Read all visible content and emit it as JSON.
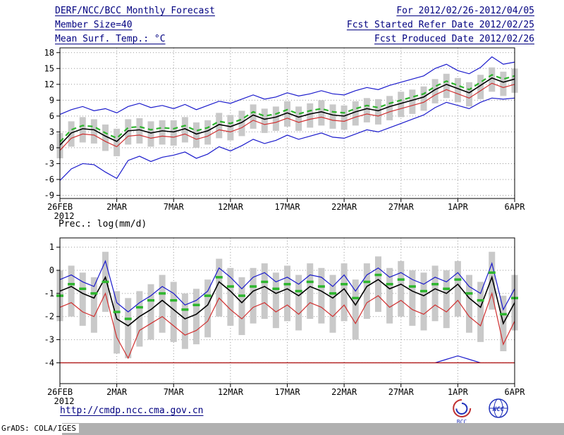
{
  "header": {
    "left": [
      "DERF/NCC/BCC Monthly Forecast",
      "Member Size=40",
      "Mean Surf. Temp.: °C"
    ],
    "right": [
      "For 2012/02/26-2012/04/05",
      "Fcst Started Refer Date 2012/02/25",
      "Fcst Produced Date 2012/02/26"
    ]
  },
  "footer": {
    "url": "http://cmdp.ncc.cma.gov.cn",
    "credit": "GrADS: COLA/IGES"
  },
  "logos": [
    {
      "label": "BCC"
    },
    {
      "label": "NCC"
    }
  ],
  "colors": {
    "navy": "#000080",
    "grid": "#999999",
    "bar": "#c9c9c9",
    "blue": "#1a1acc",
    "red": "#d03030",
    "green": "#2db52d",
    "floor_red": "#b01818",
    "strip": "#b0b0b0"
  },
  "chart_data": [
    {
      "type": "line",
      "title": "Mean Surf. Temp.: °C",
      "ylabel": "",
      "xlabel": "",
      "ylim": [
        -9.6,
        18.9
      ],
      "yticks": [
        -9,
        -6,
        -3,
        0,
        3,
        6,
        9,
        12,
        15,
        18
      ],
      "x_days": 40,
      "x_tick_days": [
        0,
        5,
        10,
        15,
        20,
        25,
        30,
        35,
        40
      ],
      "x_tick_labels": [
        "26FEB",
        "2MAR",
        "7MAR",
        "12MAR",
        "17MAR",
        "22MAR",
        "27MAR",
        "1APR",
        "6APR"
      ],
      "x_sub_label": "2012",
      "grid": "dotted",
      "legend": "none",
      "bars": {
        "name": "ensemble-spread-bars",
        "color": "#c9c9c9",
        "top": [
          2.8,
          5.0,
          5.8,
          5.4,
          4.4,
          3.6,
          5.4,
          5.6,
          5.0,
          5.2,
          5.2,
          5.8,
          4.8,
          5.2,
          6.6,
          6.2,
          7.0,
          8.2,
          7.4,
          7.8,
          8.8,
          7.8,
          8.4,
          9.0,
          8.2,
          8.0,
          8.8,
          9.4,
          9.2,
          9.8,
          10.6,
          11.0,
          11.6,
          13.0,
          14.0,
          13.2,
          12.4,
          13.8,
          15.2,
          14.4,
          15.0
        ],
        "bottom": [
          -2.0,
          0.2,
          1.0,
          0.8,
          -0.6,
          -1.6,
          0.6,
          0.8,
          0.2,
          0.6,
          0.4,
          1.0,
          0.0,
          0.6,
          1.8,
          1.4,
          2.2,
          3.6,
          2.8,
          3.2,
          4.0,
          3.2,
          3.8,
          4.2,
          3.6,
          3.4,
          4.2,
          4.8,
          4.4,
          5.2,
          5.8,
          6.4,
          7.0,
          8.4,
          9.4,
          8.6,
          7.8,
          9.2,
          10.6,
          9.8,
          10.4
        ]
      },
      "series": [
        {
          "name": "upper-blue-line",
          "color": "#1a1acc",
          "width": 1.2,
          "dash": "",
          "values": [
            6.3,
            7.2,
            7.8,
            7.0,
            7.4,
            6.6,
            7.8,
            8.4,
            7.6,
            8.0,
            7.4,
            8.2,
            7.2,
            8.0,
            8.8,
            8.4,
            9.2,
            10.0,
            9.2,
            9.6,
            10.4,
            9.8,
            10.2,
            10.8,
            10.2,
            10.0,
            10.8,
            11.4,
            11.0,
            11.8,
            12.4,
            13.0,
            13.6,
            15.0,
            15.8,
            14.6,
            14.0,
            15.2,
            17.2,
            15.8,
            16.2
          ]
        },
        {
          "name": "lower-blue-line",
          "color": "#1a1acc",
          "width": 1.2,
          "dash": "",
          "values": [
            -6.2,
            -4.0,
            -3.0,
            -3.2,
            -4.6,
            -5.8,
            -2.4,
            -1.6,
            -2.6,
            -1.8,
            -1.4,
            -0.8,
            -2.0,
            -1.2,
            0.2,
            -0.6,
            0.4,
            1.6,
            0.8,
            1.4,
            2.4,
            1.6,
            2.2,
            2.8,
            2.0,
            1.8,
            2.6,
            3.4,
            3.0,
            3.8,
            4.6,
            5.4,
            6.2,
            7.6,
            8.6,
            8.0,
            7.4,
            8.6,
            9.4,
            9.2,
            9.4
          ]
        },
        {
          "name": "red-line",
          "color": "#d03030",
          "width": 1.2,
          "dash": "",
          "values": [
            -0.5,
            1.8,
            2.6,
            2.4,
            1.2,
            0.2,
            2.2,
            2.4,
            1.8,
            2.2,
            2.0,
            2.6,
            1.6,
            2.2,
            3.4,
            3.0,
            3.8,
            5.2,
            4.4,
            4.8,
            5.6,
            4.8,
            5.4,
            5.8,
            5.2,
            5.0,
            5.8,
            6.4,
            6.0,
            6.8,
            7.4,
            8.0,
            8.6,
            10.0,
            11.0,
            10.2,
            9.4,
            10.8,
            12.2,
            11.4,
            12.0
          ]
        },
        {
          "name": "black-mean-line",
          "color": "#000000",
          "width": 1.6,
          "dash": "",
          "values": [
            0.5,
            2.8,
            3.6,
            3.4,
            2.2,
            1.2,
            3.2,
            3.4,
            2.8,
            3.2,
            3.0,
            3.6,
            2.6,
            3.2,
            4.4,
            4.0,
            4.8,
            6.2,
            5.4,
            5.8,
            6.6,
            5.8,
            6.4,
            6.8,
            6.2,
            6.0,
            6.8,
            7.4,
            7.0,
            7.8,
            8.4,
            9.0,
            9.6,
            11.0,
            12.0,
            11.2,
            10.4,
            11.8,
            13.2,
            12.4,
            13.0
          ]
        },
        {
          "name": "green-dashed-line",
          "color": "#2db52d",
          "width": 2.2,
          "dash": "7 5",
          "values": [
            1.1,
            3.4,
            4.2,
            4.0,
            2.8,
            1.8,
            3.8,
            4.0,
            3.4,
            3.8,
            3.6,
            4.2,
            3.2,
            3.8,
            5.0,
            4.6,
            5.4,
            6.8,
            6.0,
            6.4,
            7.2,
            6.4,
            7.0,
            7.4,
            6.8,
            6.6,
            7.4,
            8.0,
            7.6,
            8.4,
            9.0,
            9.6,
            10.2,
            11.6,
            12.6,
            11.8,
            11.0,
            12.4,
            13.8,
            13.0,
            13.6
          ]
        }
      ]
    },
    {
      "type": "line",
      "title": "Prec.: log(mm/d)",
      "ylabel": "",
      "xlabel": "",
      "ylim": [
        -4.9,
        1.4
      ],
      "yticks": [
        -4,
        -3,
        -2,
        -1,
        0,
        1
      ],
      "x_days": 40,
      "x_tick_days": [
        0,
        5,
        10,
        15,
        20,
        25,
        30,
        35,
        40
      ],
      "x_tick_labels": [
        "26FEB",
        "2MAR",
        "7MAR",
        "12MAR",
        "17MAR",
        "22MAR",
        "27MAR",
        "1APR",
        "6APR"
      ],
      "x_sub_label": "2012",
      "grid": "dotted",
      "legend": "none",
      "bars": {
        "name": "ensemble-spread-bars",
        "color": "#c9c9c9",
        "top": [
          0.0,
          0.2,
          -0.1,
          -0.3,
          0.8,
          -0.9,
          -1.2,
          -0.9,
          -0.6,
          -0.2,
          -0.5,
          -1.0,
          -0.8,
          -0.4,
          0.5,
          0.1,
          -0.3,
          0.1,
          0.3,
          -0.1,
          0.2,
          -0.2,
          0.3,
          0.1,
          -0.2,
          0.3,
          -0.4,
          0.3,
          0.6,
          0.1,
          0.4,
          0.0,
          -0.1,
          0.2,
          0.0,
          0.4,
          -0.2,
          -0.5,
          0.8,
          -1.1,
          -0.2
        ],
        "bottom": [
          -2.2,
          -2.0,
          -2.4,
          -2.7,
          -1.8,
          -3.6,
          -3.8,
          -3.3,
          -3.0,
          -2.7,
          -3.1,
          -3.4,
          -3.2,
          -2.9,
          -2.0,
          -2.4,
          -2.8,
          -2.3,
          -2.1,
          -2.5,
          -2.2,
          -2.6,
          -2.1,
          -2.3,
          -2.7,
          -2.2,
          -3.0,
          -2.1,
          -1.8,
          -2.3,
          -2.0,
          -2.4,
          -2.6,
          -2.2,
          -2.5,
          -2.0,
          -2.7,
          -3.1,
          -1.7,
          -3.5,
          -2.6
        ]
      },
      "series": [
        {
          "name": "red-line",
          "color": "#d03030",
          "width": 1.2,
          "dash": "",
          "values": [
            -1.6,
            -1.4,
            -1.8,
            -2.0,
            -1.0,
            -2.9,
            -3.8,
            -2.6,
            -2.3,
            -2.0,
            -2.4,
            -2.8,
            -2.6,
            -2.2,
            -1.2,
            -1.7,
            -2.1,
            -1.6,
            -1.4,
            -1.8,
            -1.5,
            -1.9,
            -1.4,
            -1.6,
            -2.0,
            -1.5,
            -2.3,
            -1.4,
            -1.1,
            -1.6,
            -1.3,
            -1.7,
            -1.9,
            -1.5,
            -1.8,
            -1.3,
            -2.0,
            -2.4,
            -1.0,
            -3.2,
            -2.2
          ]
        },
        {
          "name": "black-mean-line",
          "color": "#000000",
          "width": 1.6,
          "dash": "",
          "values": [
            -0.9,
            -0.7,
            -1.0,
            -1.2,
            -0.3,
            -2.1,
            -2.4,
            -2.0,
            -1.7,
            -1.3,
            -1.7,
            -2.1,
            -1.9,
            -1.5,
            -0.5,
            -0.9,
            -1.4,
            -0.9,
            -0.7,
            -1.0,
            -0.8,
            -1.1,
            -0.7,
            -0.9,
            -1.2,
            -0.8,
            -1.5,
            -0.7,
            -0.4,
            -0.8,
            -0.6,
            -0.9,
            -1.1,
            -0.8,
            -1.0,
            -0.6,
            -1.2,
            -1.6,
            -0.3,
            -2.3,
            -1.4
          ]
        },
        {
          "name": "upper-blue-line",
          "color": "#1a1acc",
          "width": 1.2,
          "dash": "",
          "values": [
            -0.4,
            -0.2,
            -0.5,
            -0.7,
            0.4,
            -1.4,
            -1.8,
            -1.4,
            -1.1,
            -0.7,
            -1.0,
            -1.5,
            -1.3,
            -0.9,
            0.1,
            -0.3,
            -0.8,
            -0.3,
            -0.1,
            -0.5,
            -0.3,
            -0.6,
            -0.2,
            -0.3,
            -0.7,
            -0.2,
            -0.9,
            -0.2,
            0.1,
            -0.3,
            -0.1,
            -0.4,
            -0.6,
            -0.3,
            -0.5,
            -0.1,
            -0.7,
            -1.0,
            0.3,
            -1.7,
            -0.8
          ]
        }
      ],
      "markers": {
        "name": "green-dash-markers",
        "color": "#2db52d",
        "values": [
          -1.1,
          -0.6,
          -0.8,
          -1.0,
          -0.5,
          -1.8,
          -2.1,
          -1.6,
          -1.3,
          -1.0,
          -1.3,
          -1.7,
          -1.5,
          -1.1,
          -0.3,
          -0.7,
          -1.1,
          -0.7,
          -0.5,
          -0.8,
          -0.6,
          -0.9,
          -0.5,
          -0.7,
          -1.0,
          -0.6,
          -1.2,
          -0.5,
          -0.2,
          -0.6,
          -0.4,
          -0.7,
          -0.9,
          -0.6,
          -0.8,
          -0.4,
          -1.0,
          -1.3,
          -0.1,
          -1.9,
          -1.2
        ]
      },
      "floor": {
        "red_value": -4,
        "red_color": "#b01818",
        "blue_color": "#1a1acc",
        "blue_bump_days": [
          33,
          34,
          35,
          36,
          37
        ],
        "blue_bump_values": [
          -4,
          -3.85,
          -3.7,
          -3.85,
          -4
        ]
      }
    }
  ]
}
